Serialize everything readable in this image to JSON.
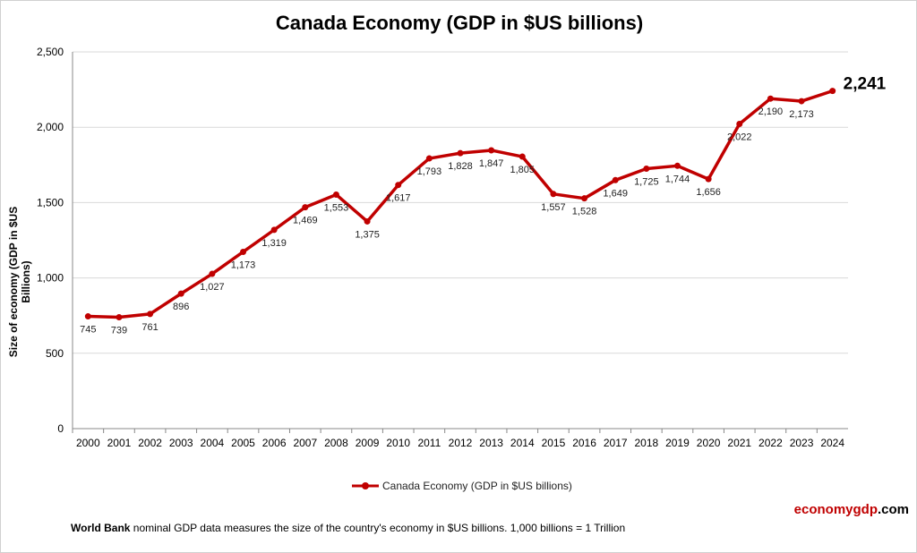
{
  "chart_data": {
    "type": "line",
    "title": "Canada Economy (GDP in $US billions)",
    "ylabel": "Size of economy (GDP in $US Billions)",
    "xlabel": "",
    "ylim": [
      0,
      2500
    ],
    "yticks": [
      0,
      500,
      1000,
      1500,
      2000,
      2500
    ],
    "ytick_labels": [
      "0",
      "500",
      "1,000",
      "1,500",
      "2,000",
      "2,500"
    ],
    "grid": true,
    "legend_position": "bottom",
    "categories": [
      "2000",
      "2001",
      "2002",
      "2003",
      "2004",
      "2005",
      "2006",
      "2007",
      "2008",
      "2009",
      "2010",
      "2011",
      "2012",
      "2013",
      "2014",
      "2015",
      "2016",
      "2017",
      "2018",
      "2019",
      "2020",
      "2021",
      "2022",
      "2023",
      "2024"
    ],
    "series": [
      {
        "name": "Canada Economy (GDP in $US billions)",
        "color": "#c00000",
        "values": [
          745,
          739,
          761,
          896,
          1027,
          1173,
          1319,
          1469,
          1553,
          1375,
          1617,
          1793,
          1828,
          1847,
          1805,
          1557,
          1528,
          1649,
          1725,
          1744,
          1656,
          2022,
          2190,
          2173,
          2241
        ],
        "labels": [
          "745",
          "739",
          "761",
          "896",
          "1,027",
          "1,173",
          "1,319",
          "1,469",
          "1,553",
          "1,375",
          "1,617",
          "1,793",
          "1,828",
          "1,847",
          "1,805",
          "1,557",
          "1,528",
          "1,649",
          "1,725",
          "1,744",
          "1,656",
          "2,022",
          "2,190",
          "2,173",
          "2,241"
        ]
      }
    ]
  },
  "brand": {
    "part1": "economygdp",
    "part2": ".com"
  },
  "footer": {
    "bold": "World Bank",
    "text": " nominal GDP data  measures the size of the country's economy in $US billions. 1,000 billions = 1 Trillion"
  }
}
